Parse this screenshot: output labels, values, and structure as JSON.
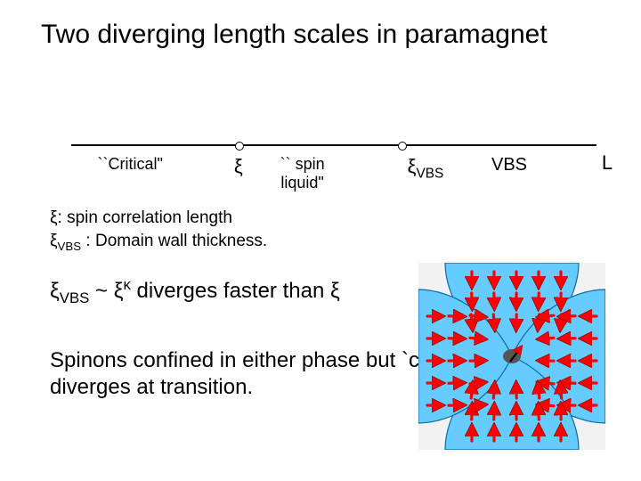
{
  "title": "Two diverging length scales in paramagnet",
  "axis": {
    "line_color": "#000000",
    "tick_positions_pct": [
      32,
      63
    ],
    "labels": [
      {
        "text": "``Critical\"",
        "x_pct": 5,
        "fontsize": 18
      },
      {
        "text": "ξ",
        "x_pct": 31,
        "fontsize": 22
      },
      {
        "text": "`` spin\nliquid\"",
        "x_pct": 44,
        "fontsize": 18,
        "centered": true
      },
      {
        "text": "ξ_VBS",
        "x_pct": 64,
        "fontsize": 22,
        "is_xi_vbs": true
      },
      {
        "text": "VBS",
        "x_pct": 80,
        "fontsize": 20
      },
      {
        "text": "L",
        "x_pct": 101,
        "fontsize": 22,
        "right_of_axis": true
      }
    ]
  },
  "definitions": {
    "line1": {
      "prefix": "ξ: ",
      "rest": "spin correlation length"
    },
    "line2": {
      "prefix": "ξ_VBS : ",
      "rest": "Domain wall thickness."
    }
  },
  "relation": {
    "lhs": "ξ_VBS",
    "mid": " ~ ξ",
    "exponent": "κ",
    "tail": " diverges faster than ξ"
  },
  "body_text": "Spinons confined in either phase\nbut `confinement scale' diverges\nat transition.",
  "figure": {
    "background": "#f2f2f2",
    "domain_fill": "#66ccff",
    "domain_stroke": "#0a6aa8",
    "arrow_fill": "#ff0000",
    "arrow_stroke": "#8a0c0c",
    "spinon_center": [
      105,
      105
    ],
    "spinon_radius": 8,
    "spinon_fill": "#555555",
    "spinon_arrow_color": "#000000",
    "type": "infographic",
    "content": "four VBS domains meeting at a vortex; red arrows indicate dimer orientation rotating by 90° between domains; central oval = spinon with a small black arrow",
    "domains": [
      {
        "region": "top",
        "direction": "down"
      },
      {
        "region": "right",
        "direction": "left"
      },
      {
        "region": "bottom",
        "direction": "up"
      },
      {
        "region": "left",
        "direction": "right"
      }
    ]
  }
}
